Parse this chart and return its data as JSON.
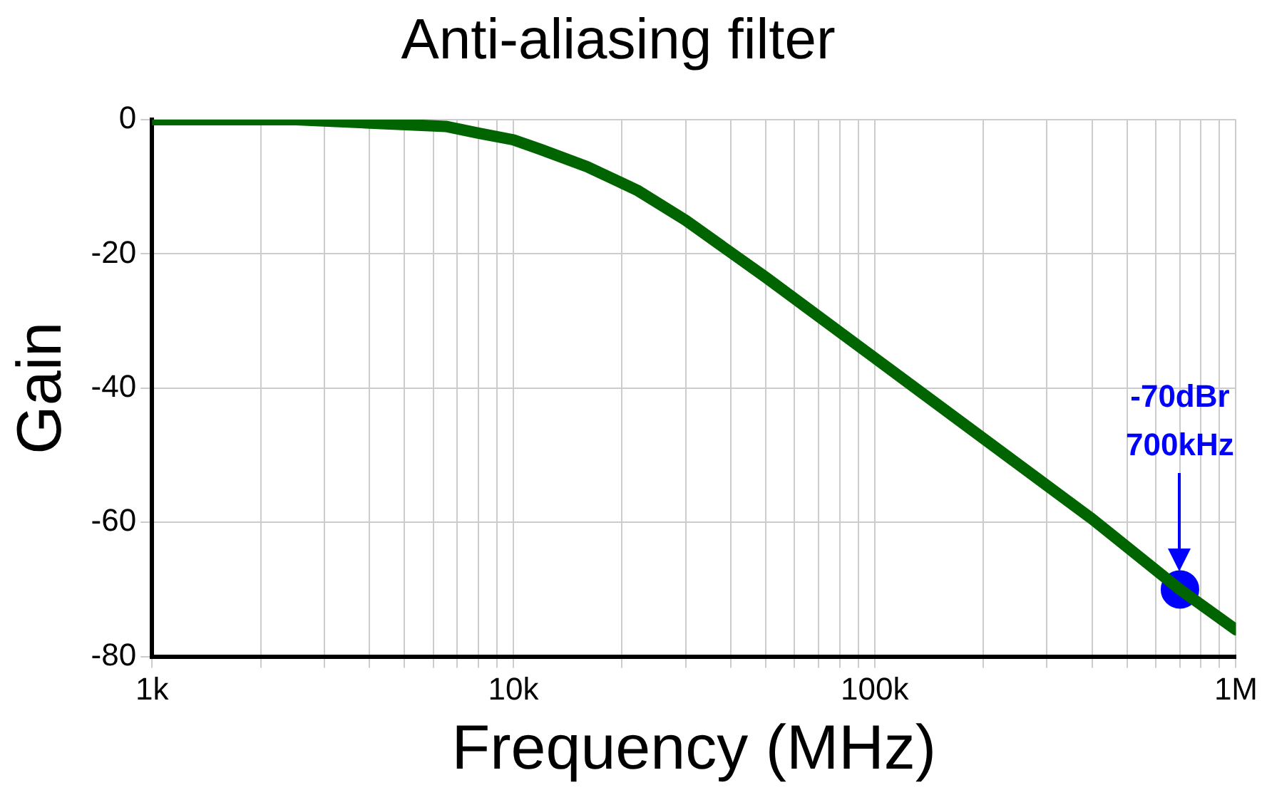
{
  "chart_data": {
    "type": "line",
    "title": "Anti-aliasing filter",
    "xlabel": "Frequency (MHz)",
    "ylabel": "Gain",
    "log": "x",
    "grid": true,
    "marker": "none",
    "line_style": "solid",
    "xlim": [
      1000,
      1000000
    ],
    "xticks": [
      {
        "value": 1000,
        "label": "1k"
      },
      {
        "value": 2000,
        "label": null
      },
      {
        "value": 3000,
        "label": null
      },
      {
        "value": 4000,
        "label": null
      },
      {
        "value": 5000,
        "label": null
      },
      {
        "value": 6000,
        "label": null
      },
      {
        "value": 7000,
        "label": null
      },
      {
        "value": 8000,
        "label": null
      },
      {
        "value": 9000,
        "label": null
      },
      {
        "value": 10000,
        "label": "10k"
      },
      {
        "value": 20000,
        "label": null
      },
      {
        "value": 30000,
        "label": null
      },
      {
        "value": 40000,
        "label": null
      },
      {
        "value": 50000,
        "label": null
      },
      {
        "value": 60000,
        "label": null
      },
      {
        "value": 70000,
        "label": null
      },
      {
        "value": 80000,
        "label": null
      },
      {
        "value": 90000,
        "label": null
      },
      {
        "value": 100000,
        "label": "100k"
      },
      {
        "value": 200000,
        "label": null
      },
      {
        "value": 300000,
        "label": null
      },
      {
        "value": 400000,
        "label": null
      },
      {
        "value": 500000,
        "label": null
      },
      {
        "value": 600000,
        "label": null
      },
      {
        "value": 700000,
        "label": null
      },
      {
        "value": 800000,
        "label": null
      },
      {
        "value": 900000,
        "label": null
      },
      {
        "value": 1000000,
        "label": "1M"
      }
    ],
    "ylim": [
      -80,
      0
    ],
    "yticks": [
      -80,
      -60,
      -40,
      -20,
      0
    ],
    "series": [
      {
        "type": "line",
        "color": "#006400",
        "x": [
          1000,
          1500,
          2500,
          4000,
          6500,
          8000,
          10000,
          12000,
          16000,
          22000,
          30000,
          50000,
          100000,
          200000,
          400000,
          700000,
          1000000
        ],
        "values": [
          0,
          0,
          0,
          -0.5,
          -1,
          -2,
          -3,
          -4.5,
          -7,
          -10.5,
          -15,
          -23.5,
          -35.5,
          -47.5,
          -59.5,
          -70,
          -76
        ]
      },
      {
        "type": "scatter",
        "color": "#0000ff",
        "marker": "circle",
        "x": [
          700000
        ],
        "values": [
          -70
        ]
      }
    ],
    "annotations": [
      "-70dBr\n700kHz"
    ]
  }
}
